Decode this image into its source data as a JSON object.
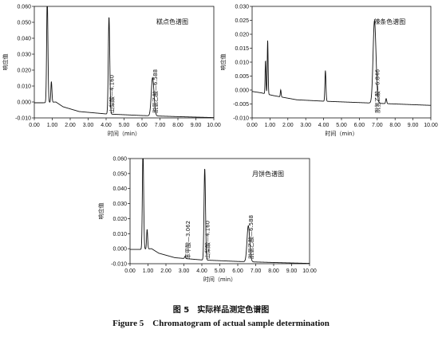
{
  "caption": {
    "cn": "图 5　实际样品测定色谱图",
    "en": "Figure 5　Chromatogram of actual sample determination"
  },
  "chart_data": [
    {
      "type": "line",
      "title": "糕点色谱图",
      "xlabel": "时间（min）",
      "ylabel": "响应值",
      "xlim": [
        0,
        10
      ],
      "ylim": [
        -0.01,
        0.06
      ],
      "xticks": [
        "0.00",
        "1.00",
        "2.00",
        "3.00",
        "4.00",
        "5.00",
        "6.00",
        "7.00",
        "8.00",
        "9.00",
        "10.00"
      ],
      "yticks": [
        "-0.010",
        "0.000",
        "0.010",
        "0.020",
        "0.030",
        "0.040",
        "0.050",
        "0.060"
      ],
      "baseline": [
        [
          0,
          -0.0005
        ],
        [
          0.5,
          -0.0005
        ],
        [
          1.2,
          0.0
        ],
        [
          1.6,
          -0.003
        ],
        [
          2.5,
          -0.006
        ],
        [
          4.0,
          -0.0075
        ],
        [
          6.0,
          -0.0085
        ],
        [
          8.0,
          -0.0092
        ],
        [
          10.0,
          -0.0098
        ]
      ],
      "peaks": [
        {
          "rt": 0.72,
          "height": 0.066,
          "width": 0.06
        },
        {
          "rt": 0.95,
          "height": 0.013,
          "width": 0.05
        },
        {
          "rt": 4.16,
          "height": 0.061,
          "width": 0.07
        },
        {
          "rt": 6.588,
          "height": 0.024,
          "width": 0.13
        }
      ],
      "annotations": [
        {
          "text": "山梨酸—4.160",
          "x": 4.16
        },
        {
          "text": "脱氢乙酸—6.588",
          "x": 6.588
        }
      ]
    },
    {
      "type": "line",
      "title": "辣条色谱图",
      "xlabel": "时间（min）",
      "ylabel": "响应值",
      "xlim": [
        0,
        10
      ],
      "ylim": [
        -0.01,
        0.03
      ],
      "xticks": [
        "0.00",
        "1.00",
        "2.00",
        "3.00",
        "4.00",
        "5.00",
        "6.00",
        "7.00",
        "8.00",
        "9.00",
        "10.00"
      ],
      "yticks": [
        "-0.010",
        "-0.005",
        "0.000",
        "0.005",
        "0.010",
        "0.015",
        "0.020",
        "0.025",
        "0.030"
      ],
      "baseline": [
        [
          0,
          -0.0005
        ],
        [
          0.5,
          -0.001
        ],
        [
          1.2,
          -0.002
        ],
        [
          2.5,
          -0.0035
        ],
        [
          4.0,
          -0.004
        ],
        [
          6.0,
          -0.0045
        ],
        [
          8.0,
          -0.005
        ],
        [
          10.0,
          -0.0055
        ]
      ],
      "peaks": [
        {
          "rt": 0.75,
          "height": 0.012,
          "width": 0.04
        },
        {
          "rt": 0.87,
          "height": 0.0195,
          "width": 0.04
        },
        {
          "rt": 1.6,
          "height": 0.0025,
          "width": 0.04
        },
        {
          "rt": 4.1,
          "height": 0.011,
          "width": 0.05
        },
        {
          "rt": 6.846,
          "height": 0.0295,
          "width": 0.14
        },
        {
          "rt": 7.5,
          "height": 0.0018,
          "width": 0.05
        }
      ],
      "annotations": [
        {
          "text": "脱氢乙酸—6.846",
          "x": 6.846
        }
      ]
    },
    {
      "type": "line",
      "title": "月饼色谱图",
      "xlabel": "时间（min）",
      "ylabel": "响应值",
      "xlim": [
        0,
        10
      ],
      "ylim": [
        -0.01,
        0.06
      ],
      "xticks": [
        "0.00",
        "1.00",
        "2.00",
        "3.00",
        "4.00",
        "5.00",
        "6.00",
        "7.00",
        "8.00",
        "9.00",
        "10.00"
      ],
      "yticks": [
        "-0.010",
        "0.000",
        "0.010",
        "0.020",
        "0.030",
        "0.040",
        "0.050",
        "0.060"
      ],
      "baseline": [
        [
          0,
          -0.0005
        ],
        [
          0.5,
          -0.0005
        ],
        [
          1.2,
          0.0
        ],
        [
          1.6,
          -0.003
        ],
        [
          2.5,
          -0.006
        ],
        [
          4.0,
          -0.0075
        ],
        [
          6.0,
          -0.0085
        ],
        [
          8.0,
          -0.0092
        ],
        [
          10.0,
          -0.0098
        ]
      ],
      "peaks": [
        {
          "rt": 0.72,
          "height": 0.066,
          "width": 0.06
        },
        {
          "rt": 0.95,
          "height": 0.013,
          "width": 0.05
        },
        {
          "rt": 3.062,
          "height": 0.0015,
          "width": 0.05
        },
        {
          "rt": 4.16,
          "height": 0.061,
          "width": 0.07
        },
        {
          "rt": 6.588,
          "height": 0.024,
          "width": 0.13
        }
      ],
      "annotations": [
        {
          "text": "苯甲酸—3.062",
          "x": 3.062
        },
        {
          "text": "山梨酸—4.160",
          "x": 4.16
        },
        {
          "text": "脱氢乙酸—6.588",
          "x": 6.588
        }
      ]
    }
  ]
}
